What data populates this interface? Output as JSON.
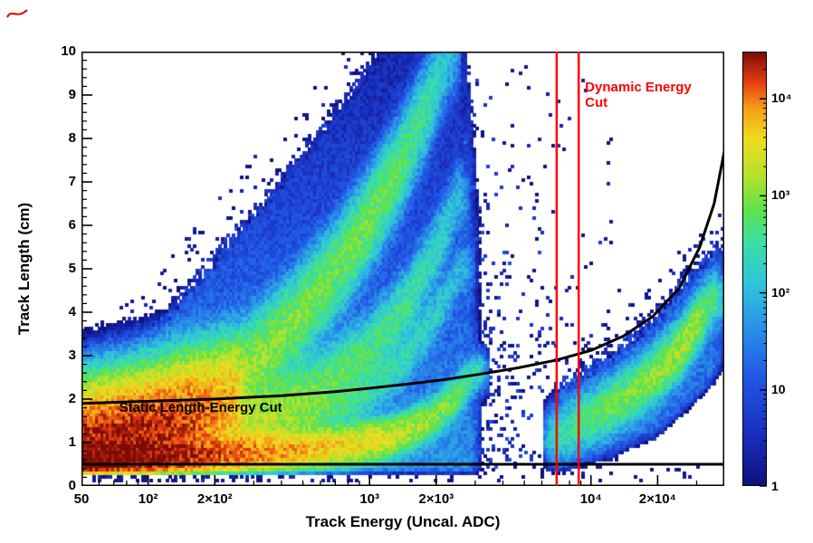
{
  "chart_data": {
    "type": "heatmap",
    "title": "",
    "x_axis": {
      "title": "Track Energy (Uncal. ADC)",
      "scale": "log",
      "min": 50,
      "max": 40000,
      "ticks": [
        {
          "v": 50,
          "label": "50"
        },
        {
          "v": 100,
          "label": "10²"
        },
        {
          "v": 200,
          "label": "2×10²"
        },
        {
          "v": 1000,
          "label": "10³"
        },
        {
          "v": 2000,
          "label": "2×10³"
        },
        {
          "v": 10000,
          "label": "10⁴"
        },
        {
          "v": 20000,
          "label": "2×10⁴"
        }
      ]
    },
    "y_axis": {
      "title": "Track Length (cm)",
      "scale": "linear",
      "min": 0,
      "max": 10,
      "major_step": 1,
      "minor_step": 0.2,
      "tick_labels": [
        "0",
        "1",
        "2",
        "3",
        "4",
        "5",
        "6",
        "7",
        "8",
        "9",
        "10"
      ]
    },
    "z_axis": {
      "scale": "log",
      "min": 1,
      "max": 30000,
      "ticks": [
        {
          "v": 1,
          "label": "1"
        },
        {
          "v": 10,
          "label": "10"
        },
        {
          "v": 100,
          "label": "10²"
        },
        {
          "v": 1000,
          "label": "10³"
        },
        {
          "v": 10000,
          "label": "10⁴"
        }
      ]
    },
    "palette": [
      [
        0.0,
        "#0e117e"
      ],
      [
        0.12,
        "#1a2fbe"
      ],
      [
        0.25,
        "#2157e6"
      ],
      [
        0.36,
        "#2a8fe8"
      ],
      [
        0.46,
        "#2fc3dc"
      ],
      [
        0.56,
        "#3adfa6"
      ],
      [
        0.64,
        "#62e24a"
      ],
      [
        0.72,
        "#b8e22b"
      ],
      [
        0.8,
        "#efdc1e"
      ],
      [
        0.87,
        "#f59f19"
      ],
      [
        0.93,
        "#e63f10"
      ],
      [
        1.0,
        "#7d0b05"
      ]
    ],
    "cuts": {
      "dynamic_energy_lines": [
        7000,
        8800
      ],
      "dynamic_color": "#ff0000",
      "static_color": "#000000",
      "static_min_length": 0.5,
      "static_curve": [
        [
          50,
          1.9
        ],
        [
          100,
          1.95
        ],
        [
          200,
          2.0
        ],
        [
          400,
          2.08
        ],
        [
          700,
          2.17
        ],
        [
          1000,
          2.25
        ],
        [
          1500,
          2.35
        ],
        [
          2200,
          2.45
        ],
        [
          3200,
          2.58
        ],
        [
          4700,
          2.72
        ],
        [
          7000,
          2.9
        ],
        [
          10000,
          3.12
        ],
        [
          14000,
          3.45
        ],
        [
          19000,
          3.9
        ],
        [
          25000,
          4.55
        ],
        [
          31000,
          5.5
        ],
        [
          36000,
          6.5
        ],
        [
          40000,
          7.7
        ]
      ]
    },
    "annotations": {
      "dynamic": {
        "text": "Dynamic Energy Cut",
        "E": 9400,
        "L": 9.35
      },
      "static": {
        "text": "Static Length-Energy Cut",
        "E": 74,
        "L": 1.98
      }
    },
    "distribution": {
      "seed": 42,
      "components": [
        {
          "kind": "cloud",
          "id": "main-cloud",
          "emin": 50,
          "emax": 3100,
          "floor": 0.38,
          "amp": 55,
          "lscale": 3.2,
          "envelope": [
            [
              50,
              2.3
            ],
            [
              100,
              3.3
            ],
            [
              200,
              5.2
            ],
            [
              400,
              7.0
            ],
            [
              700,
              8.6
            ],
            [
              1000,
              9.8
            ],
            [
              1300,
              10.3
            ],
            [
              2700,
              10.3
            ],
            [
              3100,
              6.5
            ]
          ]
        },
        {
          "kind": "halo",
          "cloud": "main-cloud",
          "prob": 0.09,
          "cmax": 3,
          "thickness": 1.3,
          "below": 0
        },
        {
          "kind": "ridge",
          "id": "bottom-streak",
          "sigma": 0.22,
          "points": [
            [
              50,
              0.55,
              25000
            ],
            [
              150,
              0.65,
              18000
            ],
            [
              400,
              0.78,
              9000
            ],
            [
              800,
              0.92,
              4500
            ],
            [
              1300,
              1.12,
              2600
            ],
            [
              1900,
              1.5,
              1300
            ],
            [
              2500,
              2.05,
              800
            ],
            [
              3000,
              2.6,
              300
            ]
          ]
        },
        {
          "kind": "ridge",
          "id": "core-tongue",
          "sigma": 0.6,
          "points": [
            [
              50,
              0.85,
              26000
            ],
            [
              100,
              1.2,
              24000
            ],
            [
              160,
              1.6,
              13000
            ],
            [
              240,
              2.0,
              4500
            ]
          ]
        },
        {
          "kind": "ridge",
          "id": "arc-upper",
          "sigma": 0.5,
          "points": [
            [
              120,
              1.3,
              2600
            ],
            [
              250,
              2.4,
              1500
            ],
            [
              450,
              3.7,
              1000
            ],
            [
              700,
              4.9,
              850
            ],
            [
              1000,
              6.1,
              900
            ],
            [
              1400,
              7.4,
              650
            ],
            [
              1900,
              8.9,
              300
            ],
            [
              2300,
              9.9,
              110
            ]
          ]
        },
        {
          "kind": "ridge",
          "id": "arc-middle",
          "sigma": 0.38,
          "points": [
            [
              150,
              1.05,
              3500
            ],
            [
              300,
              1.55,
              1600
            ],
            [
              600,
              2.25,
              800
            ],
            [
              1000,
              3.1,
              500
            ],
            [
              1500,
              4.2,
              380
            ],
            [
              2100,
              5.6,
              220
            ],
            [
              2500,
              6.6,
              100
            ]
          ]
        },
        {
          "kind": "ridge",
          "id": "arc-low",
          "sigma": 0.3,
          "points": [
            [
              260,
              1.05,
              1400
            ],
            [
              500,
              1.45,
              650
            ],
            [
              900,
              2.05,
              350
            ],
            [
              1400,
              2.85,
              260
            ],
            [
              2000,
              3.9,
              170
            ],
            [
              2600,
              5.0,
              80
            ]
          ]
        },
        {
          "kind": "cloud",
          "id": "alpha-cloud",
          "emin": 6800,
          "emax": 40000,
          "amp": 28,
          "lscale": 4.0,
          "envelope": [
            [
              6800,
              2.1
            ],
            [
              9000,
              2.5
            ],
            [
              12000,
              2.9
            ],
            [
              16000,
              3.4
            ],
            [
              21000,
              4.0
            ],
            [
              26000,
              4.6
            ],
            [
              31000,
              5.0
            ],
            [
              40000,
              5.6
            ]
          ],
          "floor_points": [
            [
              6800,
              0.55
            ],
            [
              12000,
              0.9
            ],
            [
              20000,
              1.4
            ],
            [
              30000,
              2.2
            ],
            [
              40000,
              2.9
            ]
          ]
        },
        {
          "kind": "halo",
          "cloud": "alpha-cloud",
          "prob": 0.12,
          "cmax": 3,
          "thickness": 0.9,
          "below": 0.4
        },
        {
          "kind": "ridge",
          "id": "alpha-ridge",
          "sigma": 0.3,
          "points": [
            [
              7000,
              1.15,
              250
            ],
            [
              9000,
              1.45,
              450
            ],
            [
              12000,
              1.8,
              800
            ],
            [
              16000,
              2.2,
              1000
            ],
            [
              21000,
              2.7,
              1300
            ],
            [
              26000,
              3.2,
              1600
            ],
            [
              31000,
              3.8,
              1300
            ],
            [
              36000,
              4.3,
              400
            ]
          ]
        },
        {
          "kind": "scatter",
          "id": "mid-columns",
          "emin": 2700,
          "emax": 6800,
          "lmin": 0.4,
          "lmax": 9.8,
          "prob": 0.8,
          "cmax": 12,
          "eDecay": 0.16,
          "lDecay": 3.2
        },
        {
          "kind": "scatter",
          "id": "bottom-row",
          "emin": 55,
          "emax": 5000,
          "lmin": 0.08,
          "lmax": 0.42,
          "prob": 0.5,
          "cmax": 4,
          "eDecay": 1.4
        },
        {
          "kind": "scatter",
          "id": "bottom-row-far",
          "emin": 5000,
          "emax": 34000,
          "lmin": 0.1,
          "lmax": 0.45,
          "prob": 0.1,
          "cmax": 2
        },
        {
          "kind": "scatter",
          "id": "upper-stray",
          "emin": 4300,
          "emax": 13500,
          "lmin": 2.0,
          "lmax": 9.7,
          "prob": 0.05,
          "cmax": 3,
          "lDecay": 6
        }
      ]
    }
  }
}
